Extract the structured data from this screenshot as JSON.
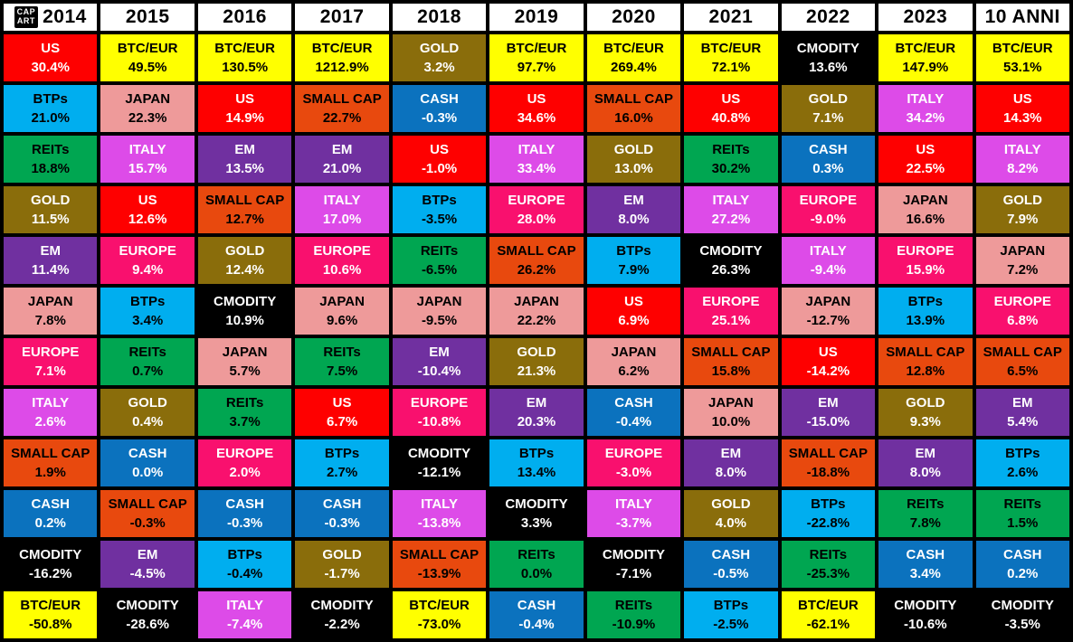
{
  "logo": {
    "line1": "CAP",
    "line2": "ART"
  },
  "asset_styles": {
    "US": {
      "bg": "#FE0000",
      "fg": "#FFFFFF"
    },
    "BTC/EUR": {
      "bg": "#FFFF00",
      "fg": "#000000"
    },
    "BTPs": {
      "bg": "#00AEEF",
      "fg": "#000000"
    },
    "REITs": {
      "bg": "#00A651",
      "fg": "#000000"
    },
    "GOLD": {
      "bg": "#8A6D0B",
      "fg": "#FFFFFF"
    },
    "EM": {
      "bg": "#7030A0",
      "fg": "#FFFFFF"
    },
    "JAPAN": {
      "bg": "#EE9A9A",
      "fg": "#000000"
    },
    "EUROPE": {
      "bg": "#F9106E",
      "fg": "#FFFFFF"
    },
    "ITALY": {
      "bg": "#DD4BE8",
      "fg": "#FFFFFF"
    },
    "SMALL CAP": {
      "bg": "#E8490E",
      "fg": "#000000"
    },
    "CASH": {
      "bg": "#0B72BE",
      "fg": "#FFFFFF"
    },
    "CMODITY": {
      "bg": "#000000",
      "fg": "#FFFFFF"
    }
  },
  "columns": [
    {
      "year": "2014",
      "cells": [
        {
          "asset": "US",
          "value": "30.4%"
        },
        {
          "asset": "BTPs",
          "value": "21.0%"
        },
        {
          "asset": "REITs",
          "value": "18.8%"
        },
        {
          "asset": "GOLD",
          "value": "11.5%"
        },
        {
          "asset": "EM",
          "value": "11.4%"
        },
        {
          "asset": "JAPAN",
          "value": "7.8%"
        },
        {
          "asset": "EUROPE",
          "value": "7.1%"
        },
        {
          "asset": "ITALY",
          "value": "2.6%"
        },
        {
          "asset": "SMALL CAP",
          "value": "1.9%"
        },
        {
          "asset": "CASH",
          "value": "0.2%"
        },
        {
          "asset": "CMODITY",
          "value": "-16.2%"
        },
        {
          "asset": "BTC/EUR",
          "value": "-50.8%"
        }
      ]
    },
    {
      "year": "2015",
      "cells": [
        {
          "asset": "BTC/EUR",
          "value": "49.5%"
        },
        {
          "asset": "JAPAN",
          "value": "22.3%"
        },
        {
          "asset": "ITALY",
          "value": "15.7%"
        },
        {
          "asset": "US",
          "value": "12.6%"
        },
        {
          "asset": "EUROPE",
          "value": "9.4%"
        },
        {
          "asset": "BTPs",
          "value": "3.4%"
        },
        {
          "asset": "REITs",
          "value": "0.7%"
        },
        {
          "asset": "GOLD",
          "value": "0.4%"
        },
        {
          "asset": "CASH",
          "value": "0.0%"
        },
        {
          "asset": "SMALL CAP",
          "value": "-0.3%"
        },
        {
          "asset": "EM",
          "value": "-4.5%"
        },
        {
          "asset": "CMODITY",
          "value": "-28.6%"
        }
      ]
    },
    {
      "year": "2016",
      "cells": [
        {
          "asset": "BTC/EUR",
          "value": "130.5%"
        },
        {
          "asset": "US",
          "value": "14.9%"
        },
        {
          "asset": "EM",
          "value": "13.5%"
        },
        {
          "asset": "SMALL CAP",
          "value": "12.7%"
        },
        {
          "asset": "GOLD",
          "value": "12.4%"
        },
        {
          "asset": "CMODITY",
          "value": "10.9%"
        },
        {
          "asset": "JAPAN",
          "value": "5.7%"
        },
        {
          "asset": "REITs",
          "value": "3.7%"
        },
        {
          "asset": "EUROPE",
          "value": "2.0%"
        },
        {
          "asset": "CASH",
          "value": "-0.3%"
        },
        {
          "asset": "BTPs",
          "value": "-0.4%"
        },
        {
          "asset": "ITALY",
          "value": "-7.4%"
        }
      ]
    },
    {
      "year": "2017",
      "cells": [
        {
          "asset": "BTC/EUR",
          "value": "1212.9%"
        },
        {
          "asset": "SMALL CAP",
          "value": "22.7%"
        },
        {
          "asset": "EM",
          "value": "21.0%"
        },
        {
          "asset": "ITALY",
          "value": "17.0%"
        },
        {
          "asset": "EUROPE",
          "value": "10.6%"
        },
        {
          "asset": "JAPAN",
          "value": "9.6%"
        },
        {
          "asset": "REITs",
          "value": "7.5%"
        },
        {
          "asset": "US",
          "value": "6.7%"
        },
        {
          "asset": "BTPs",
          "value": "2.7%"
        },
        {
          "asset": "CASH",
          "value": "-0.3%"
        },
        {
          "asset": "GOLD",
          "value": "-1.7%"
        },
        {
          "asset": "CMODITY",
          "value": "-2.2%"
        }
      ]
    },
    {
      "year": "2018",
      "cells": [
        {
          "asset": "GOLD",
          "value": "3.2%"
        },
        {
          "asset": "CASH",
          "value": "-0.3%"
        },
        {
          "asset": "US",
          "value": "-1.0%"
        },
        {
          "asset": "BTPs",
          "value": "-3.5%"
        },
        {
          "asset": "REITs",
          "value": "-6.5%"
        },
        {
          "asset": "JAPAN",
          "value": "-9.5%"
        },
        {
          "asset": "EM",
          "value": "-10.4%"
        },
        {
          "asset": "EUROPE",
          "value": "-10.8%"
        },
        {
          "asset": "CMODITY",
          "value": "-12.1%"
        },
        {
          "asset": "ITALY",
          "value": "-13.8%"
        },
        {
          "asset": "SMALL CAP",
          "value": "-13.9%"
        },
        {
          "asset": "BTC/EUR",
          "value": "-73.0%"
        }
      ]
    },
    {
      "year": "2019",
      "cells": [
        {
          "asset": "BTC/EUR",
          "value": "97.7%"
        },
        {
          "asset": "US",
          "value": "34.6%"
        },
        {
          "asset": "ITALY",
          "value": "33.4%"
        },
        {
          "asset": "EUROPE",
          "value": "28.0%"
        },
        {
          "asset": "SMALL CAP",
          "value": "26.2%"
        },
        {
          "asset": "JAPAN",
          "value": "22.2%"
        },
        {
          "asset": "GOLD",
          "value": "21.3%"
        },
        {
          "asset": "EM",
          "value": "20.3%"
        },
        {
          "asset": "BTPs",
          "value": "13.4%"
        },
        {
          "asset": "CMODITY",
          "value": "3.3%"
        },
        {
          "asset": "REITs",
          "value": "0.0%"
        },
        {
          "asset": "CASH",
          "value": "-0.4%"
        }
      ]
    },
    {
      "year": "2020",
      "cells": [
        {
          "asset": "BTC/EUR",
          "value": "269.4%"
        },
        {
          "asset": "SMALL CAP",
          "value": "16.0%"
        },
        {
          "asset": "GOLD",
          "value": "13.0%"
        },
        {
          "asset": "EM",
          "value": "8.0%"
        },
        {
          "asset": "BTPs",
          "value": "7.9%"
        },
        {
          "asset": "US",
          "value": "6.9%"
        },
        {
          "asset": "JAPAN",
          "value": "6.2%"
        },
        {
          "asset": "CASH",
          "value": "-0.4%"
        },
        {
          "asset": "EUROPE",
          "value": "-3.0%"
        },
        {
          "asset": "ITALY",
          "value": "-3.7%"
        },
        {
          "asset": "CMODITY",
          "value": "-7.1%"
        },
        {
          "asset": "REITs",
          "value": "-10.9%"
        }
      ]
    },
    {
      "year": "2021",
      "cells": [
        {
          "asset": "BTC/EUR",
          "value": "72.1%"
        },
        {
          "asset": "US",
          "value": "40.8%"
        },
        {
          "asset": "REITs",
          "value": "30.2%"
        },
        {
          "asset": "ITALY",
          "value": "27.2%"
        },
        {
          "asset": "CMODITY",
          "value": "26.3%"
        },
        {
          "asset": "EUROPE",
          "value": "25.1%"
        },
        {
          "asset": "SMALL CAP",
          "value": "15.8%"
        },
        {
          "asset": "JAPAN",
          "value": "10.0%"
        },
        {
          "asset": "EM",
          "value": "8.0%"
        },
        {
          "asset": "GOLD",
          "value": "4.0%"
        },
        {
          "asset": "CASH",
          "value": "-0.5%"
        },
        {
          "asset": "BTPs",
          "value": "-2.5%"
        }
      ]
    },
    {
      "year": "2022",
      "cells": [
        {
          "asset": "CMODITY",
          "value": "13.6%"
        },
        {
          "asset": "GOLD",
          "value": "7.1%"
        },
        {
          "asset": "CASH",
          "value": "0.3%"
        },
        {
          "asset": "EUROPE",
          "value": "-9.0%"
        },
        {
          "asset": "ITALY",
          "value": "-9.4%"
        },
        {
          "asset": "JAPAN",
          "value": "-12.7%"
        },
        {
          "asset": "US",
          "value": "-14.2%"
        },
        {
          "asset": "EM",
          "value": "-15.0%"
        },
        {
          "asset": "SMALL CAP",
          "value": "-18.8%"
        },
        {
          "asset": "BTPs",
          "value": "-22.8%"
        },
        {
          "asset": "REITs",
          "value": "-25.3%"
        },
        {
          "asset": "BTC/EUR",
          "value": "-62.1%"
        }
      ]
    },
    {
      "year": "2023",
      "cells": [
        {
          "asset": "BTC/EUR",
          "value": "147.9%"
        },
        {
          "asset": "ITALY",
          "value": "34.2%"
        },
        {
          "asset": "US",
          "value": "22.5%"
        },
        {
          "asset": "JAPAN",
          "value": "16.6%"
        },
        {
          "asset": "EUROPE",
          "value": "15.9%"
        },
        {
          "asset": "BTPs",
          "value": "13.9%"
        },
        {
          "asset": "SMALL CAP",
          "value": "12.8%"
        },
        {
          "asset": "GOLD",
          "value": "9.3%"
        },
        {
          "asset": "EM",
          "value": "8.0%"
        },
        {
          "asset": "REITs",
          "value": "7.8%"
        },
        {
          "asset": "CASH",
          "value": "3.4%"
        },
        {
          "asset": "CMODITY",
          "value": "-10.6%"
        }
      ]
    },
    {
      "year": "10 ANNI",
      "cells": [
        {
          "asset": "BTC/EUR",
          "value": "53.1%"
        },
        {
          "asset": "US",
          "value": "14.3%"
        },
        {
          "asset": "ITALY",
          "value": "8.2%"
        },
        {
          "asset": "GOLD",
          "value": "7.9%"
        },
        {
          "asset": "JAPAN",
          "value": "7.2%"
        },
        {
          "asset": "EUROPE",
          "value": "6.8%"
        },
        {
          "asset": "SMALL CAP",
          "value": "6.5%"
        },
        {
          "asset": "EM",
          "value": "5.4%"
        },
        {
          "asset": "BTPs",
          "value": "2.6%"
        },
        {
          "asset": "REITs",
          "value": "1.5%"
        },
        {
          "asset": "CASH",
          "value": "0.2%"
        },
        {
          "asset": "CMODITY",
          "value": "-3.5%"
        }
      ]
    }
  ],
  "chart_data": {
    "type": "table",
    "title": "Asset class annual returns ranked by year (periodic table / quilt chart)",
    "categories": [
      "2014",
      "2015",
      "2016",
      "2017",
      "2018",
      "2019",
      "2020",
      "2021",
      "2022",
      "2023",
      "10 ANNI"
    ],
    "series": [
      {
        "name": "US",
        "values": [
          30.4,
          12.6,
          14.9,
          6.7,
          -1.0,
          34.6,
          6.9,
          40.8,
          -14.2,
          22.5,
          14.3
        ]
      },
      {
        "name": "BTC/EUR",
        "values": [
          -50.8,
          49.5,
          130.5,
          1212.9,
          -73.0,
          97.7,
          269.4,
          72.1,
          -62.1,
          147.9,
          53.1
        ]
      },
      {
        "name": "BTPs",
        "values": [
          21.0,
          3.4,
          -0.4,
          2.7,
          -3.5,
          13.4,
          7.9,
          -2.5,
          -22.8,
          13.9,
          2.6
        ]
      },
      {
        "name": "REITs",
        "values": [
          18.8,
          0.7,
          3.7,
          7.5,
          -6.5,
          0.0,
          -10.9,
          30.2,
          -25.3,
          7.8,
          1.5
        ]
      },
      {
        "name": "GOLD",
        "values": [
          11.5,
          0.4,
          12.4,
          -1.7,
          3.2,
          21.3,
          13.0,
          4.0,
          7.1,
          9.3,
          7.9
        ]
      },
      {
        "name": "EM",
        "values": [
          11.4,
          -4.5,
          13.5,
          21.0,
          -10.4,
          20.3,
          8.0,
          8.0,
          -15.0,
          8.0,
          5.4
        ]
      },
      {
        "name": "JAPAN",
        "values": [
          7.8,
          22.3,
          5.7,
          9.6,
          -9.5,
          22.2,
          6.2,
          10.0,
          -12.7,
          16.6,
          7.2
        ]
      },
      {
        "name": "EUROPE",
        "values": [
          7.1,
          9.4,
          2.0,
          10.6,
          -10.8,
          28.0,
          -3.0,
          25.1,
          -9.0,
          15.9,
          6.8
        ]
      },
      {
        "name": "ITALY",
        "values": [
          2.6,
          15.7,
          -7.4,
          17.0,
          -13.8,
          33.4,
          -3.7,
          27.2,
          -9.4,
          34.2,
          8.2
        ]
      },
      {
        "name": "SMALL CAP",
        "values": [
          1.9,
          -0.3,
          12.7,
          22.7,
          -13.9,
          26.2,
          16.0,
          15.8,
          -18.8,
          12.8,
          6.5
        ]
      },
      {
        "name": "CASH",
        "values": [
          0.2,
          0.0,
          -0.3,
          -0.3,
          -0.3,
          -0.4,
          -0.4,
          -0.5,
          0.3,
          3.4,
          0.2
        ]
      },
      {
        "name": "CMODITY",
        "values": [
          -16.2,
          -28.6,
          10.9,
          -2.2,
          -12.1,
          3.3,
          -7.1,
          26.3,
          13.6,
          -10.6,
          -3.5
        ]
      }
    ],
    "layout": {
      "rows_ranked_descending": true,
      "cell_color_by_asset": true,
      "legend": "none"
    }
  }
}
